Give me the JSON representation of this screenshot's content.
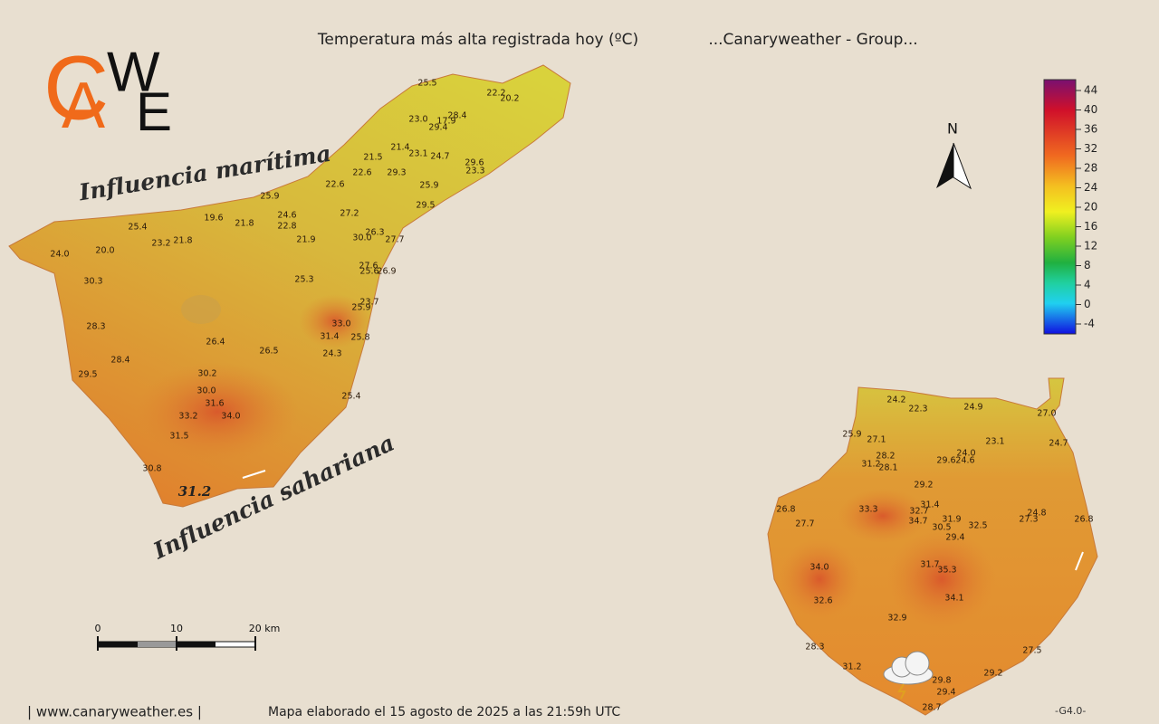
{
  "header": {
    "title": "Temperatura más alta registrada hoy (ºC)",
    "group": "...Canaryweather - Group..."
  },
  "logo": [
    "C",
    "A",
    "W",
    "E"
  ],
  "labels": {
    "maritime": "Influencia marítima",
    "saharan": "Influencia sahariana",
    "north": "N"
  },
  "legend": {
    "ticks": [
      "44",
      "40",
      "36",
      "32",
      "28",
      "24",
      "20",
      "16",
      "12",
      "8",
      "4",
      "0",
      "-4"
    ]
  },
  "scale": {
    "ticks": [
      "0",
      "10",
      "20 km"
    ]
  },
  "tenerife": {
    "readings": [
      "25.5",
      "22.2",
      "20.2",
      "23.0",
      "28.4",
      "17.9",
      "29.4",
      "21.4",
      "23.1",
      "24.7",
      "21.5",
      "29.6",
      "23.3",
      "22.6",
      "29.3",
      "25.9",
      "22.6",
      "25.9",
      "29.5",
      "24.6",
      "27.2",
      "19.6",
      "21.8",
      "22.8",
      "25.4",
      "26.3",
      "30.0",
      "27.7",
      "23.2",
      "21.8",
      "21.9",
      "20.0",
      "24.0",
      "27.6",
      "25.6",
      "26.9",
      "30.3",
      "25.3",
      "23.7",
      "25.9",
      "33.0",
      "28.3",
      "31.4",
      "25.8",
      "26.4",
      "26.5",
      "24.3",
      "28.4",
      "29.5",
      "30.2",
      "30.0",
      "25.4",
      "31.6",
      "33.2",
      "34.0",
      "31.5",
      "30.8"
    ],
    "highlight": "31.2"
  },
  "gran_canaria": {
    "readings": [
      "24.2",
      "22.3",
      "24.9",
      "27.0",
      "25.9",
      "27.1",
      "23.1",
      "24.7",
      "28.2",
      "24.0",
      "29.6",
      "24.6",
      "31.2",
      "28.1",
      "29.2",
      "31.4",
      "33.3",
      "32.7",
      "26.8",
      "24.8",
      "31.9",
      "27.3",
      "26.8",
      "27.7",
      "34.7",
      "30.5",
      "32.5",
      "29.4",
      "31.7",
      "35.3",
      "34.0",
      "34.1",
      "32.6",
      "32.9",
      "28.3",
      "27.5",
      "31.2",
      "29.2",
      "29.8",
      "29.4",
      "28.7"
    ]
  },
  "footer": {
    "site": "| www.canaryweather.es |",
    "made": "Mapa elaborado el 15 agosto de 2025 a las 21:59h UTC",
    "version": "-G4.0-"
  }
}
